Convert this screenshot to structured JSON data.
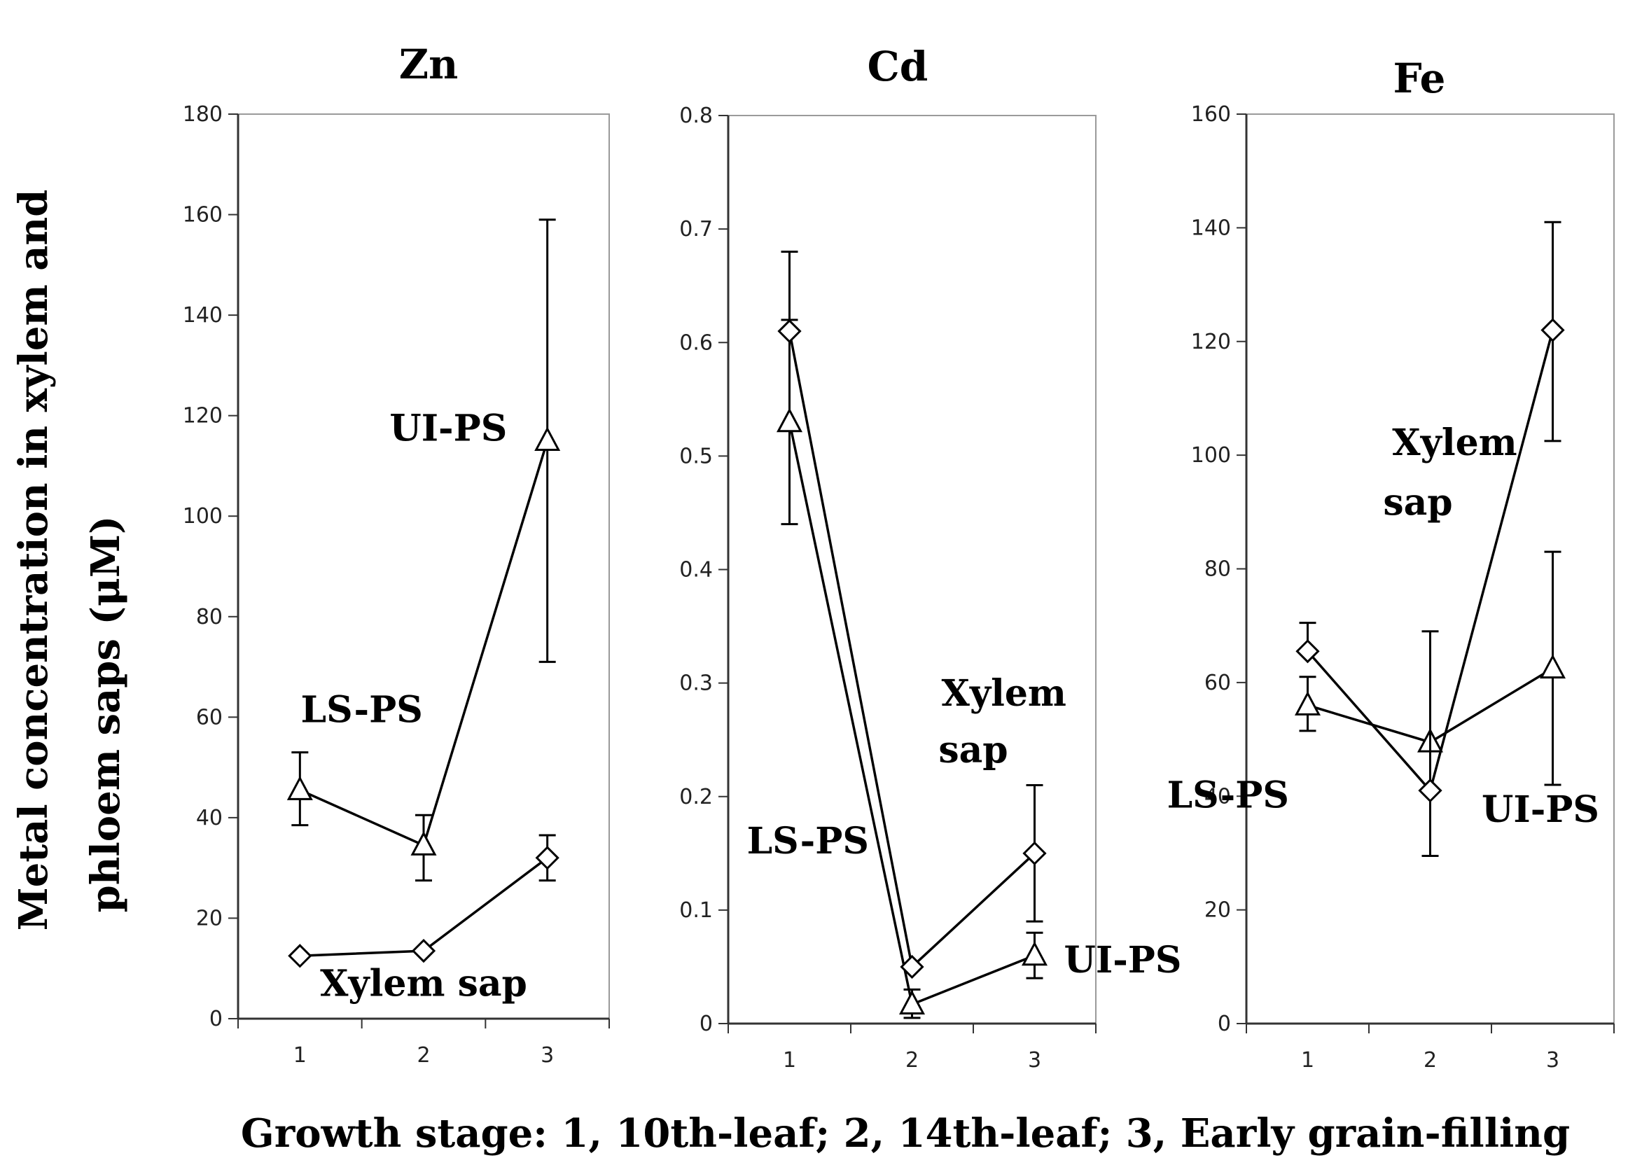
{
  "figure": {
    "ylabel_line1": "Metal concentration in xylem and",
    "ylabel_line2": "phloem saps (μM)",
    "xlabel": "Growth stage: 1, 10th-leaf; 2, 14th-leaf; 3, Early grain-filling"
  },
  "chart_data": [
    {
      "type": "line",
      "title": "Zn",
      "categories": [
        "1",
        "2",
        "3"
      ],
      "ylim": [
        0,
        180
      ],
      "yticks": [
        0,
        20,
        40,
        60,
        80,
        100,
        120,
        140,
        160,
        180
      ],
      "ytick_labels": [
        "0",
        "20",
        "40",
        "60",
        "80",
        "100",
        "120",
        "140",
        "160",
        "180"
      ],
      "series": [
        {
          "name": "LS-PS / UI-PS (phloem sap)",
          "marker": "triangle",
          "values": [
            45.5,
            34.5,
            115
          ],
          "err_low": [
            38.5,
            27.5,
            71
          ],
          "err_high": [
            53,
            40.5,
            159
          ]
        },
        {
          "name": "Xylem sap",
          "marker": "diamond",
          "values": [
            12.5,
            13.5,
            32
          ],
          "err_low": [
            12.5,
            13.5,
            27.5
          ],
          "err_high": [
            12.5,
            13.5,
            36.5
          ]
        }
      ],
      "annotations": [
        {
          "text": "UI-PS",
          "x": 2.2,
          "y": 115
        },
        {
          "text": "LS-PS",
          "x": 1.5,
          "y": 59
        },
        {
          "text": "Xylem sap",
          "x": 2.0,
          "y": 4.5
        }
      ]
    },
    {
      "type": "line",
      "title": "Cd",
      "categories": [
        "1",
        "2",
        "3"
      ],
      "ylim": [
        0,
        0.8
      ],
      "yticks": [
        0,
        0.1,
        0.2,
        0.3,
        0.4,
        0.5,
        0.6,
        0.7,
        0.8
      ],
      "ytick_labels": [
        "0",
        "0.1",
        "0.2",
        "0.3",
        "0.4",
        "0.5",
        "0.6",
        "0.7",
        "0.8"
      ],
      "series": [
        {
          "name": "LS-PS / UI-PS (phloem sap)",
          "marker": "triangle",
          "values": [
            0.53,
            0.017,
            0.06
          ],
          "err_low": [
            0.44,
            0.005,
            0.04
          ],
          "err_high": [
            0.62,
            0.03,
            0.08
          ]
        },
        {
          "name": "Xylem sap",
          "marker": "diamond",
          "values": [
            0.61,
            0.05,
            0.15
          ],
          "err_low": [
            0.61,
            0.05,
            0.09
          ],
          "err_high": [
            0.68,
            0.05,
            0.21
          ]
        }
      ],
      "annotations": [
        {
          "text": "Xylem",
          "x": 2.75,
          "y": 0.28
        },
        {
          "text": "sap",
          "x": 2.5,
          "y": 0.23
        },
        {
          "text": "LS-PS",
          "x": 1.15,
          "y": 0.15
        },
        {
          "text": "UI-PS",
          "x": 3.72,
          "y": 0.045
        }
      ]
    },
    {
      "type": "line",
      "title": "Fe",
      "categories": [
        "1",
        "2",
        "3"
      ],
      "ylim": [
        0,
        160
      ],
      "yticks": [
        0,
        20,
        40,
        60,
        80,
        100,
        120,
        140,
        160
      ],
      "ytick_labels": [
        "0",
        "20",
        "40",
        "60",
        "80",
        "100",
        "120",
        "140",
        "160"
      ],
      "series": [
        {
          "name": "LS-PS / UI-PS (phloem sap)",
          "marker": "triangle",
          "values": [
            56,
            49.5,
            62.5
          ],
          "err_low": [
            51.5,
            49.5,
            42
          ],
          "err_high": [
            61,
            49.5,
            83
          ]
        },
        {
          "name": "Xylem sap",
          "marker": "diamond",
          "values": [
            65.5,
            41,
            122
          ],
          "err_low": [
            65.5,
            29.5,
            102.5
          ],
          "err_high": [
            70.5,
            69,
            141
          ]
        }
      ],
      "annotations": [
        {
          "text": "Xylem",
          "x": 2.2,
          "y": 100
        },
        {
          "text": "sap",
          "x": 1.9,
          "y": 89.5
        },
        {
          "text": "LS-PS",
          "x": 0.35,
          "y": 38
        },
        {
          "text": "UI-PS",
          "x": 2.9,
          "y": 35.5
        }
      ]
    }
  ]
}
